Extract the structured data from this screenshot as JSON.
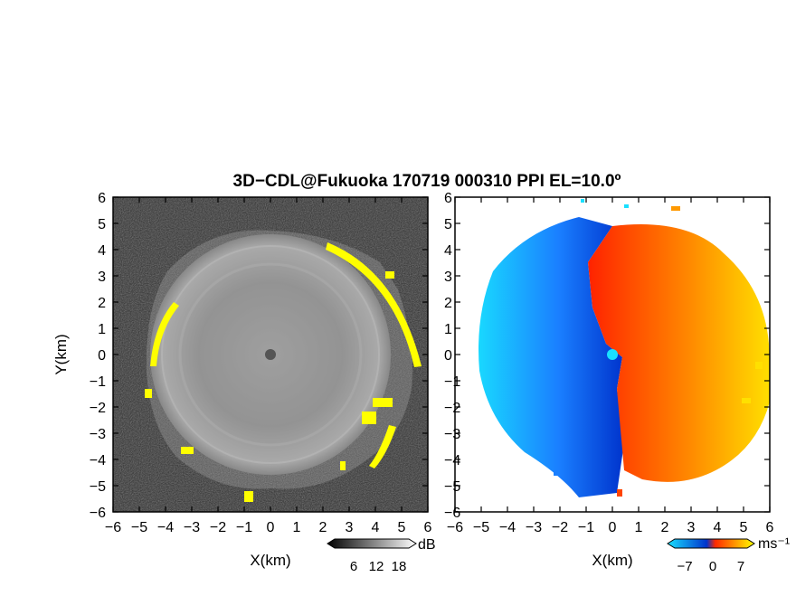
{
  "title": "3D−CDL@Fukuoka 170719 000310 PPI EL=10.0º",
  "chart_data": [
    {
      "type": "heatmap",
      "panel": "signal",
      "xlabel": "X(km)",
      "ylabel": "Y(km)",
      "xlim": [
        -6,
        6
      ],
      "ylim": [
        -6,
        6
      ],
      "xticks": [
        "−6",
        "−5",
        "−4",
        "−3",
        "−2",
        "−1",
        "0",
        "1",
        "2",
        "3",
        "4",
        "5",
        "6"
      ],
      "yticks": [
        "−6",
        "−5",
        "−4",
        "−3",
        "−2",
        "−1",
        "0",
        "1",
        "2",
        "3",
        "4",
        "5",
        "6"
      ],
      "scan_radius_km": 4.6,
      "colorbar": {
        "label": "dB",
        "ticks": [
          "6",
          "12",
          "18"
        ],
        "range": [
          0,
          24
        ],
        "colors": [
          "#000000",
          "#ffffff"
        ]
      },
      "highlight_color": "#ffff00",
      "background_color": "#2a2a2a"
    },
    {
      "type": "heatmap",
      "panel": "radial-velocity",
      "xlabel": "X(km)",
      "ylabel": "",
      "xlim": [
        -6,
        6
      ],
      "ylim": [
        -6,
        6
      ],
      "xticks": [
        "−6",
        "−5",
        "−4",
        "−3",
        "−2",
        "−1",
        "0",
        "1",
        "2",
        "3",
        "4",
        "5",
        "6"
      ],
      "yticks": [
        "−6",
        "−5",
        "−4",
        "−3",
        "−2",
        "−1",
        "0",
        "1",
        "2",
        "3",
        "4",
        "5",
        "6"
      ],
      "scan_radius_km": 5.3,
      "colorbar": {
        "label": "ms⁻¹",
        "ticks": [
          "−7",
          "0",
          "7"
        ],
        "range": [
          -9,
          9
        ],
        "colors": [
          "#19e0ff",
          "#0033cc",
          "#ff2a00",
          "#ffff00"
        ]
      }
    }
  ]
}
